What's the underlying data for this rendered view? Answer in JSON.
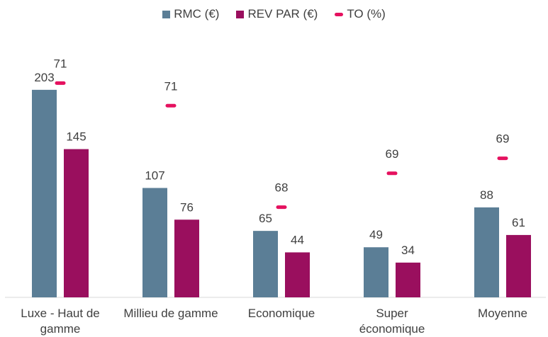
{
  "chart_data": {
    "type": "bar",
    "categories": [
      "Luxe - Haut de gamme",
      "Millieu de gamme",
      "Economique",
      "Super économique",
      "Moyenne"
    ],
    "series": [
      {
        "name": "RMC (€)",
        "color": "#5b7e96",
        "values": [
          203,
          107,
          65,
          49,
          88
        ]
      },
      {
        "name": "REV PAR (€)",
        "color": "#9a0f5e",
        "values": [
          145,
          76,
          44,
          34,
          61
        ]
      },
      {
        "name": "TO (%)",
        "color": "#e5115f",
        "type": "marker",
        "axis": "y2",
        "values": [
          71.3,
          70.7,
          68.0,
          68.9,
          69.3
        ],
        "value_labels": [
          "71",
          "71",
          "68",
          "69",
          "69"
        ]
      }
    ],
    "ylim": [
      0,
      250
    ],
    "y2lim": [
      65.6,
      72.4
    ],
    "grid": false,
    "legend": "top"
  }
}
